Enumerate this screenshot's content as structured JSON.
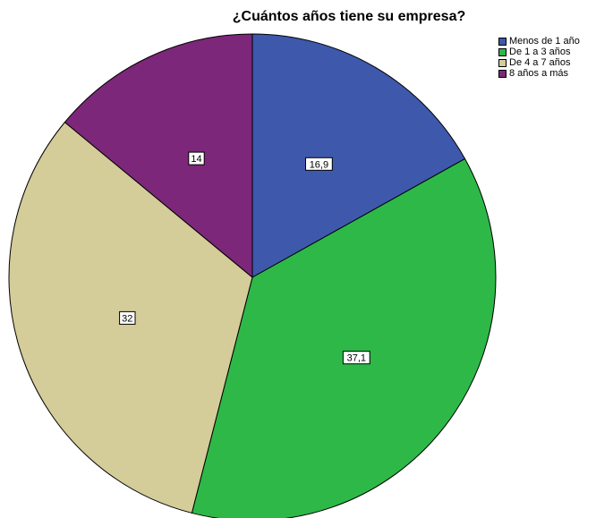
{
  "chart_data": {
    "type": "pie",
    "title": "¿Cuántos años tiene su empresa?",
    "slices": [
      {
        "label": "Menos de 1 año",
        "value": 16.9,
        "data_label": "16,9",
        "color": "#3e58ac"
      },
      {
        "label": "De 1 a 3 años",
        "value": 37.1,
        "data_label": "37,1",
        "color": "#2eb848"
      },
      {
        "label": "De 4 a 7 años",
        "value": 32,
        "data_label": "32",
        "color": "#d4cc99"
      },
      {
        "label": "8 años a más",
        "value": 14,
        "data_label": "14",
        "color": "#7c2779"
      }
    ],
    "start_angle": "12 o'clock",
    "direction": "clockwise",
    "legend_position": "top-right",
    "slice_outline_color": "#000000"
  }
}
